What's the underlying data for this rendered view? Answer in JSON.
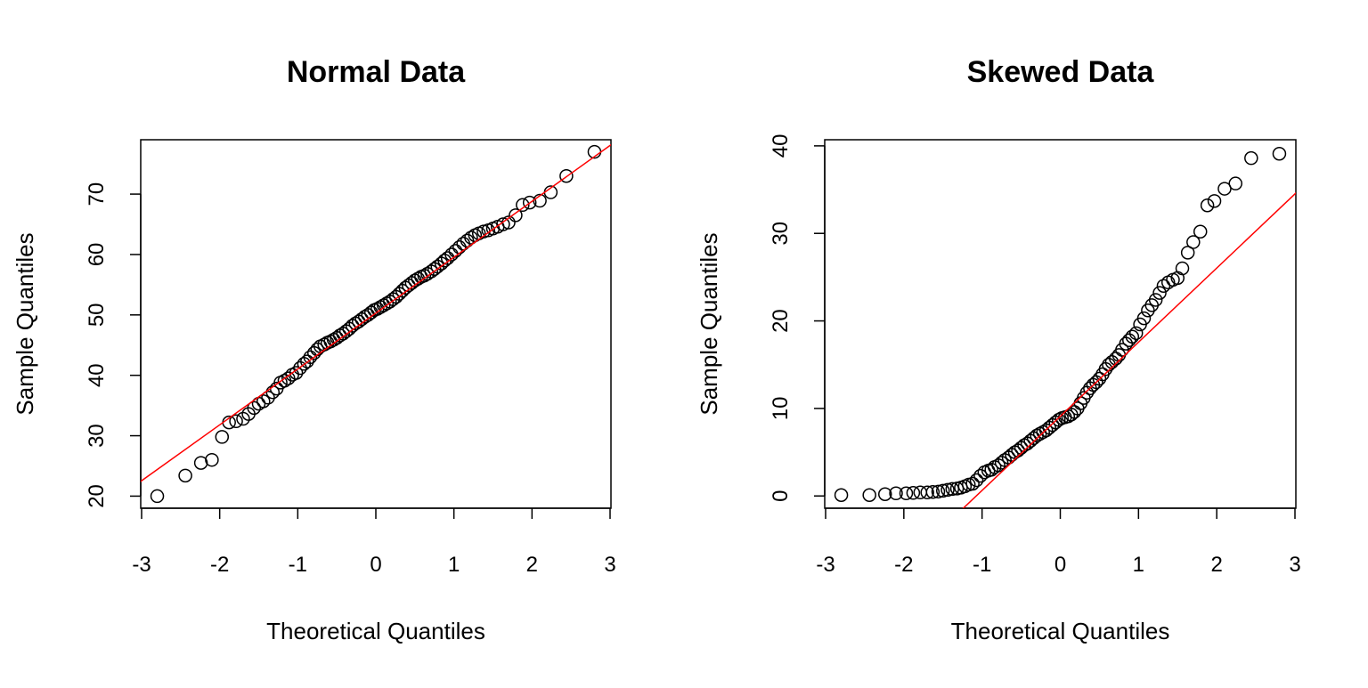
{
  "chart_data": [
    {
      "type": "scatter",
      "title": "Normal Data",
      "xlabel": "Theoretical Quantiles",
      "ylabel": "Sample Quantiles",
      "xlim": [
        -3,
        3
      ],
      "ylim": [
        18,
        79
      ],
      "xticks": [
        -3,
        -2,
        -1,
        0,
        1,
        2,
        3
      ],
      "yticks": [
        20,
        30,
        40,
        50,
        60,
        70
      ],
      "grid": false,
      "point_color": "#000000",
      "reference_line": {
        "intercept": 50.3,
        "slope": 9.25,
        "color": "#ff0000"
      },
      "x": [
        -2.8,
        -2.44,
        -2.24,
        -2.1,
        -1.97,
        -1.88,
        -1.79,
        -1.7,
        -1.63,
        -1.56,
        -1.5,
        -1.44,
        -1.38,
        -1.32,
        -1.27,
        -1.22,
        -1.17,
        -1.12,
        -1.07,
        -1.02,
        -0.97,
        -0.92,
        -0.88,
        -0.84,
        -0.79,
        -0.75,
        -0.71,
        -0.66,
        -0.62,
        -0.58,
        -0.54,
        -0.5,
        -0.46,
        -0.42,
        -0.38,
        -0.34,
        -0.3,
        -0.26,
        -0.22,
        -0.18,
        -0.14,
        -0.1,
        -0.06,
        -0.02,
        0.02,
        0.06,
        0.1,
        0.14,
        0.18,
        0.22,
        0.26,
        0.3,
        0.34,
        0.38,
        0.42,
        0.46,
        0.5,
        0.54,
        0.58,
        0.62,
        0.66,
        0.71,
        0.75,
        0.79,
        0.84,
        0.88,
        0.92,
        0.97,
        1.02,
        1.07,
        1.12,
        1.17,
        1.22,
        1.27,
        1.32,
        1.38,
        1.44,
        1.5,
        1.56,
        1.63,
        1.7,
        1.79,
        1.88,
        1.97,
        2.1,
        2.24,
        2.44,
        2.8
      ],
      "y": [
        20,
        23.4,
        25.5,
        26,
        29.8,
        32.2,
        32.4,
        32.8,
        33.6,
        34.6,
        35.3,
        35.7,
        36.3,
        37.2,
        37.8,
        38.8,
        39.1,
        39.5,
        40.1,
        40.4,
        41.2,
        41.9,
        42.3,
        43,
        43.7,
        44.3,
        44.8,
        45.1,
        45.4,
        45.6,
        45.9,
        46.2,
        46.6,
        46.9,
        47.3,
        47.7,
        48.2,
        48.6,
        48.9,
        49.3,
        49.7,
        50,
        50.4,
        50.8,
        51,
        51.3,
        51.6,
        51.9,
        52.2,
        52.6,
        53,
        53.5,
        54,
        54.5,
        54.9,
        55.3,
        55.7,
        56,
        56.3,
        56.5,
        56.8,
        57.2,
        57.6,
        58,
        58.5,
        59,
        59.4,
        60,
        60.6,
        61.2,
        61.8,
        62.3,
        62.8,
        63.2,
        63.5,
        63.8,
        64,
        64.3,
        64.6,
        65,
        65.3,
        66.5,
        68.2,
        68.6,
        68.9,
        70.3,
        73,
        77
      ]
    },
    {
      "type": "scatter",
      "title": "Skewed Data",
      "xlabel": "Theoretical Quantiles",
      "ylabel": "Sample Quantiles",
      "xlim": [
        -3,
        3
      ],
      "ylim": [
        -1.4,
        40.7
      ],
      "xticks": [
        -3,
        -2,
        -1,
        0,
        1,
        2,
        3
      ],
      "yticks": [
        0,
        10,
        20,
        30,
        40
      ],
      "grid": false,
      "point_color": "#000000",
      "reference_line": {
        "intercept": 9.1,
        "slope": 8.47,
        "color": "#ff0000"
      },
      "x": [
        -2.8,
        -2.44,
        -2.24,
        -2.1,
        -1.97,
        -1.88,
        -1.79,
        -1.7,
        -1.63,
        -1.56,
        -1.5,
        -1.44,
        -1.38,
        -1.32,
        -1.27,
        -1.22,
        -1.17,
        -1.12,
        -1.07,
        -1.02,
        -0.97,
        -0.92,
        -0.88,
        -0.84,
        -0.79,
        -0.75,
        -0.71,
        -0.66,
        -0.62,
        -0.58,
        -0.54,
        -0.5,
        -0.46,
        -0.42,
        -0.38,
        -0.34,
        -0.3,
        -0.26,
        -0.22,
        -0.18,
        -0.14,
        -0.1,
        -0.06,
        -0.02,
        0.02,
        0.06,
        0.1,
        0.14,
        0.18,
        0.22,
        0.26,
        0.3,
        0.34,
        0.38,
        0.42,
        0.46,
        0.5,
        0.54,
        0.58,
        0.62,
        0.66,
        0.71,
        0.75,
        0.79,
        0.84,
        0.88,
        0.92,
        0.97,
        1.02,
        1.07,
        1.12,
        1.17,
        1.22,
        1.27,
        1.32,
        1.38,
        1.44,
        1.5,
        1.56,
        1.63,
        1.7,
        1.79,
        1.88,
        1.97,
        2.1,
        2.24,
        2.44,
        2.8
      ],
      "y": [
        0.1,
        0.1,
        0.2,
        0.3,
        0.3,
        0.35,
        0.4,
        0.4,
        0.45,
        0.5,
        0.6,
        0.7,
        0.8,
        0.85,
        0.95,
        1.1,
        1.3,
        1.4,
        1.8,
        2.3,
        2.7,
        2.9,
        3.0,
        3.3,
        3.5,
        3.8,
        4.1,
        4.4,
        4.7,
        5.0,
        5.2,
        5.5,
        5.8,
        6.0,
        6.3,
        6.6,
        6.9,
        7.1,
        7.3,
        7.5,
        7.8,
        8.1,
        8.4,
        8.7,
        8.9,
        9.0,
        9.1,
        9.3,
        9.6,
        10,
        10.6,
        11.2,
        11.8,
        12.3,
        12.7,
        13,
        13.4,
        13.9,
        14.5,
        15,
        15.3,
        15.7,
        16.1,
        16.7,
        17.4,
        17.8,
        18.2,
        18.6,
        19.6,
        20.3,
        21.2,
        21.8,
        22.4,
        23.2,
        24,
        24.4,
        24.7,
        24.9,
        26,
        27.8,
        29,
        30.2,
        33.2,
        33.7,
        35.1,
        35.7,
        38.6,
        39.1
      ]
    }
  ]
}
